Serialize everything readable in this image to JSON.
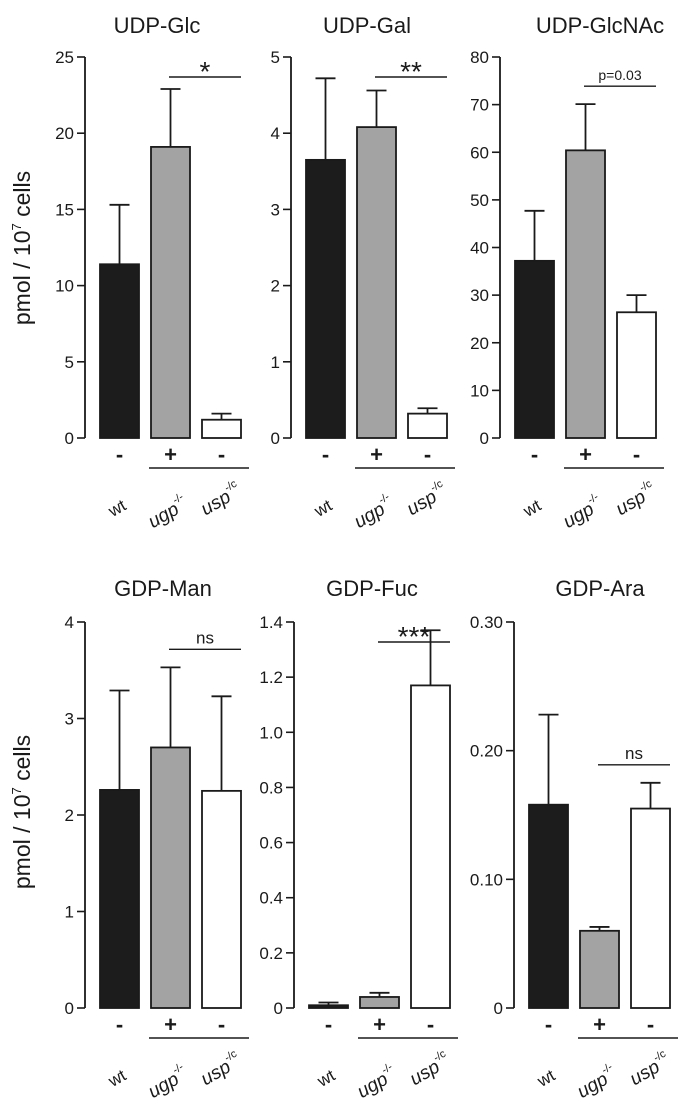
{
  "figure": {
    "y_axis_label_main": "pmol / 10",
    "y_axis_label_exp": "7",
    "y_axis_label_tail": " cells",
    "colors": {
      "wt": "#1c1c1c",
      "ugp": "#a3a3a3",
      "usp": "#ffffff",
      "stroke": "#1a1a1a"
    }
  },
  "chart_data": [
    {
      "type": "bar",
      "title": "UDP-Glc",
      "categories": [
        "-",
        "+",
        "-"
      ],
      "genotypes": [
        "wt",
        "ugp",
        "usp"
      ],
      "values": [
        11.4,
        19.1,
        1.2
      ],
      "errors": [
        3.9,
        3.8,
        0.4
      ],
      "ylim": [
        0,
        25
      ],
      "yticks": [
        "0",
        "5",
        "10",
        "15",
        "20",
        "25"
      ],
      "significance": {
        "text": "*",
        "from": 1,
        "to": 2
      },
      "show_ylabel": true
    },
    {
      "type": "bar",
      "title": "UDP-Gal",
      "categories": [
        "-",
        "+",
        "-"
      ],
      "genotypes": [
        "wt",
        "ugp",
        "usp"
      ],
      "values": [
        3.65,
        4.08,
        0.32
      ],
      "errors": [
        1.07,
        0.48,
        0.07
      ],
      "ylim": [
        0,
        5
      ],
      "yticks": [
        "0",
        "1",
        "2",
        "3",
        "4",
        "5"
      ],
      "significance": {
        "text": "**",
        "from": 1,
        "to": 2
      },
      "show_ylabel": false
    },
    {
      "type": "bar",
      "title": "UDP-GlcNAc",
      "categories": [
        "-",
        "+",
        "-"
      ],
      "genotypes": [
        "wt",
        "ugp",
        "usp"
      ],
      "values": [
        37.2,
        60.4,
        26.4
      ],
      "errors": [
        10.5,
        9.7,
        3.6
      ],
      "ylim": [
        0,
        80
      ],
      "yticks": [
        "0",
        "10",
        "20",
        "30",
        "40",
        "50",
        "60",
        "70",
        "80"
      ],
      "significance": {
        "text": "p=0.03",
        "from": 1,
        "to": 2
      },
      "show_ylabel": false
    },
    {
      "type": "bar",
      "title": "GDP-Man",
      "categories": [
        "-",
        "+",
        "-"
      ],
      "genotypes": [
        "wt",
        "ugp",
        "usp"
      ],
      "values": [
        2.26,
        2.7,
        2.25
      ],
      "errors": [
        1.03,
        0.83,
        0.98
      ],
      "ylim": [
        0,
        4
      ],
      "yticks": [
        "0",
        "1",
        "2",
        "3",
        "4"
      ],
      "significance": {
        "text": "ns",
        "from": 1,
        "to": 2
      },
      "show_ylabel": true
    },
    {
      "type": "bar",
      "title": "GDP-Fuc",
      "categories": [
        "-",
        "+",
        "-"
      ],
      "genotypes": [
        "wt",
        "ugp",
        "usp"
      ],
      "values": [
        0.01,
        0.04,
        1.17
      ],
      "errors": [
        0.01,
        0.015,
        0.2
      ],
      "ylim": [
        0,
        1.4
      ],
      "yticks": [
        "0",
        "0.2",
        "0.4",
        "0.6",
        "0.8",
        "1.0",
        "1.2",
        "1.4"
      ],
      "significance": {
        "text": "***",
        "from": 1,
        "to": 2
      },
      "show_ylabel": false
    },
    {
      "type": "bar",
      "title": "GDP-Ara",
      "categories": [
        "-",
        "+",
        "-"
      ],
      "genotypes": [
        "wt",
        "ugp",
        "usp"
      ],
      "values": [
        0.158,
        0.06,
        0.155
      ],
      "errors": [
        0.07,
        0.003,
        0.02
      ],
      "ylim": [
        0,
        0.3
      ],
      "yticks": [
        "0",
        "0.10",
        "0.20",
        "0.30"
      ],
      "tick_values": [
        0,
        0.1,
        0.2,
        0.3
      ],
      "significance": {
        "text": "ns",
        "from": 1,
        "to": 2
      },
      "show_ylabel": false
    }
  ],
  "xlabels": {
    "wt": "wt",
    "ugp": "ugp",
    "ugp_sup": "-/-",
    "usp": "usp",
    "usp_sup": "-/c"
  }
}
